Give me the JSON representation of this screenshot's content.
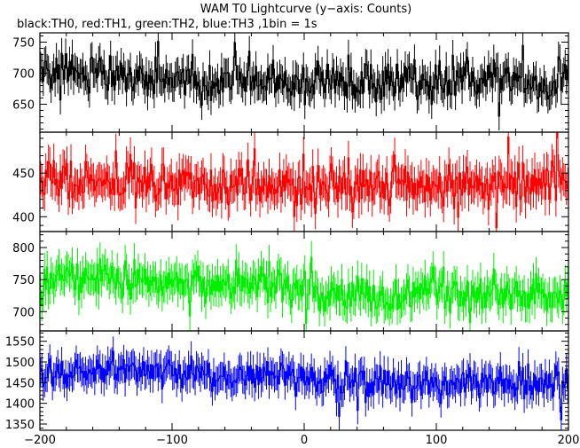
{
  "chart_data": {
    "type": "line",
    "title": "WAM T0 Lightcurve (y−axis: Counts)",
    "subtitle": "black:TH0, red:TH1, green:TH2, blue:TH3 ,1bin = 1s",
    "x": {
      "range": [
        -200,
        200
      ],
      "ticks": [
        -200,
        -100,
        0,
        100,
        200
      ],
      "tick_labels": [
        "−200",
        "−100",
        "0",
        "100",
        "200"
      ]
    },
    "panels": [
      {
        "name": "TH0",
        "color": "#000000",
        "ylim": [
          605,
          765
        ],
        "yticks": [
          650,
          700,
          750
        ],
        "mean": 690,
        "noise": 28,
        "trend": [
          [
            -200,
            702
          ],
          [
            -150,
            696
          ],
          [
            -50,
            688
          ],
          [
            0,
            688
          ],
          [
            100,
            684
          ],
          [
            150,
            690
          ],
          [
            200,
            688
          ]
        ]
      },
      {
        "name": "TH1",
        "color": "#ff0000",
        "ylim": [
          383,
          497
        ],
        "yticks": [
          400,
          450
        ],
        "mean": 440,
        "noise": 24,
        "trend": [
          [
            -200,
            443
          ],
          [
            -150,
            440
          ],
          [
            -100,
            438
          ],
          [
            0,
            435
          ],
          [
            100,
            437
          ],
          [
            200,
            440
          ]
        ]
      },
      {
        "name": "TH2",
        "color": "#00ee00",
        "ylim": [
          670,
          825
        ],
        "yticks": [
          700,
          750,
          800
        ],
        "mean": 735,
        "noise": 28,
        "trend": [
          [
            -200,
            752
          ],
          [
            -150,
            752
          ],
          [
            -100,
            745
          ],
          [
            -50,
            740
          ],
          [
            0,
            733
          ],
          [
            50,
            725
          ],
          [
            100,
            727
          ],
          [
            150,
            727
          ],
          [
            200,
            722
          ]
        ]
      },
      {
        "name": "TH3",
        "color": "#0000ff",
        "ylim": [
          1335,
          1575
        ],
        "yticks": [
          1350,
          1400,
          1450,
          1500,
          1550
        ],
        "mean": 1460,
        "noise": 35,
        "trend": [
          [
            -200,
            1475
          ],
          [
            -150,
            1480
          ],
          [
            -100,
            1470
          ],
          [
            -50,
            1465
          ],
          [
            0,
            1460
          ],
          [
            50,
            1452
          ],
          [
            100,
            1448
          ],
          [
            150,
            1450
          ],
          [
            200,
            1450
          ]
        ]
      }
    ]
  }
}
